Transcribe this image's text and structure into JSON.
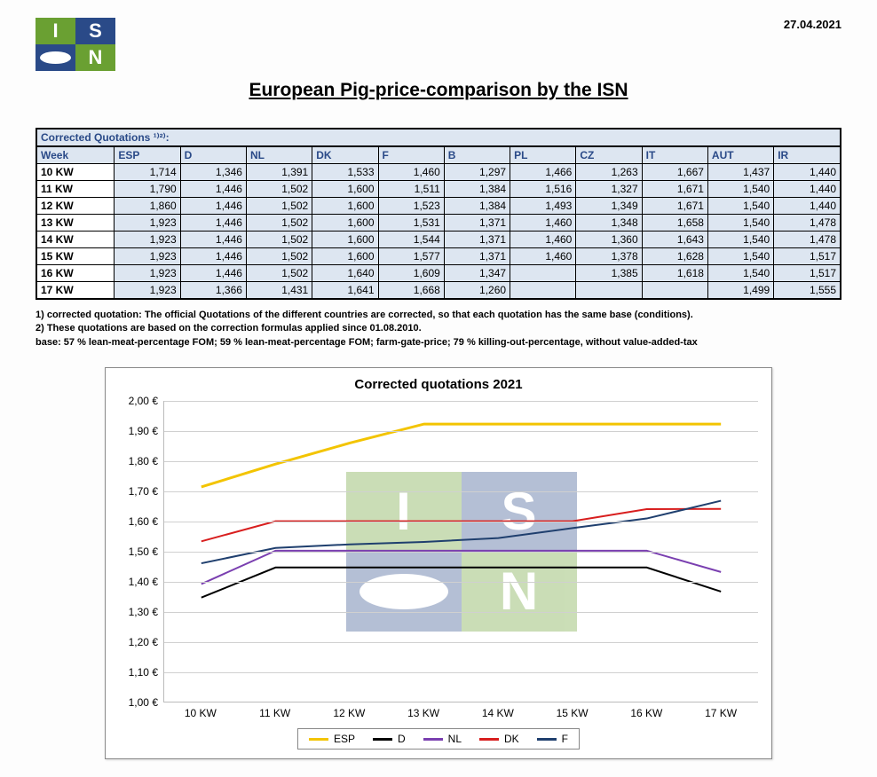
{
  "date": "27.04.2021",
  "title": "European Pig-price-comparison by the ISN",
  "table": {
    "caption": "Corrected Quotations ¹⁾²⁾:",
    "columns": [
      "Week",
      "ESP",
      "D",
      "NL",
      "DK",
      "F",
      "B",
      "PL",
      "CZ",
      "IT",
      "AUT",
      "IR"
    ],
    "rows": [
      [
        "10 KW",
        "1,714",
        "1,346",
        "1,391",
        "1,533",
        "1,460",
        "1,297",
        "1,466",
        "1,263",
        "1,667",
        "1,437",
        "1,440"
      ],
      [
        "11 KW",
        "1,790",
        "1,446",
        "1,502",
        "1,600",
        "1,511",
        "1,384",
        "1,516",
        "1,327",
        "1,671",
        "1,540",
        "1,440"
      ],
      [
        "12 KW",
        "1,860",
        "1,446",
        "1,502",
        "1,600",
        "1,523",
        "1,384",
        "1,493",
        "1,349",
        "1,671",
        "1,540",
        "1,440"
      ],
      [
        "13 KW",
        "1,923",
        "1,446",
        "1,502",
        "1,600",
        "1,531",
        "1,371",
        "1,460",
        "1,348",
        "1,658",
        "1,540",
        "1,478"
      ],
      [
        "14 KW",
        "1,923",
        "1,446",
        "1,502",
        "1,600",
        "1,544",
        "1,371",
        "1,460",
        "1,360",
        "1,643",
        "1,540",
        "1,478"
      ],
      [
        "15 KW",
        "1,923",
        "1,446",
        "1,502",
        "1,600",
        "1,577",
        "1,371",
        "1,460",
        "1,378",
        "1,628",
        "1,540",
        "1,517"
      ],
      [
        "16 KW",
        "1,923",
        "1,446",
        "1,502",
        "1,640",
        "1,609",
        "1,347",
        "",
        "1,385",
        "1,618",
        "1,540",
        "1,517"
      ],
      [
        "17 KW",
        "1,923",
        "1,366",
        "1,431",
        "1,641",
        "1,668",
        "1,260",
        "",
        "",
        "",
        "1,499",
        "1,555"
      ]
    ]
  },
  "footnotes": [
    "1) corrected quotation: The official Quotations of the different countries are corrected, so that each quotation has the same base (conditions).",
    "2) These quotations are based on the correction formulas applied since 01.08.2010.",
    "base: 57 % lean-meat-percentage FOM; 59 % lean-meat-percentage FOM; farm-gate-price; 79 % killing-out-percentage, without value-added-tax"
  ],
  "chart": {
    "title": "Corrected quotations 2021",
    "type": "line",
    "ylim": [
      1.0,
      2.0
    ],
    "ytick_step": 0.1,
    "y_tick_labels": [
      "1,00 €",
      "1,10 €",
      "1,20 €",
      "1,30 €",
      "1,40 €",
      "1,50 €",
      "1,60 €",
      "1,70 €",
      "1,80 €",
      "1,90 €",
      "2,00 €"
    ],
    "categories": [
      "10 KW",
      "11 KW",
      "12 KW",
      "13 KW",
      "14 KW",
      "15 KW",
      "16 KW",
      "17 KW"
    ],
    "series": [
      {
        "name": "ESP",
        "color": "#f3c400",
        "width": 3,
        "values": [
          1.714,
          1.79,
          1.86,
          1.923,
          1.923,
          1.923,
          1.923,
          1.923
        ]
      },
      {
        "name": "D",
        "color": "#000000",
        "width": 2,
        "values": [
          1.346,
          1.446,
          1.446,
          1.446,
          1.446,
          1.446,
          1.446,
          1.366
        ]
      },
      {
        "name": "NL",
        "color": "#7a3fb0",
        "width": 2,
        "values": [
          1.391,
          1.502,
          1.502,
          1.502,
          1.502,
          1.502,
          1.502,
          1.431
        ]
      },
      {
        "name": "DK",
        "color": "#d81e1e",
        "width": 2,
        "values": [
          1.533,
          1.6,
          1.6,
          1.6,
          1.6,
          1.6,
          1.64,
          1.641
        ]
      },
      {
        "name": "F",
        "color": "#1f3f6e",
        "width": 2,
        "values": [
          1.46,
          1.511,
          1.523,
          1.531,
          1.544,
          1.577,
          1.609,
          1.668
        ]
      }
    ],
    "grid_color": "#d0d0d0",
    "axis_color": "#bbbbbb",
    "background_color": "#ffffff",
    "label_fontsize": 12,
    "title_fontsize": 15
  },
  "logo": {
    "letter_i": "I",
    "letter_s": "S",
    "letter_n": "N",
    "colors": {
      "green": "#6aa032",
      "blue": "#2a4a88",
      "white": "#ffffff"
    }
  }
}
